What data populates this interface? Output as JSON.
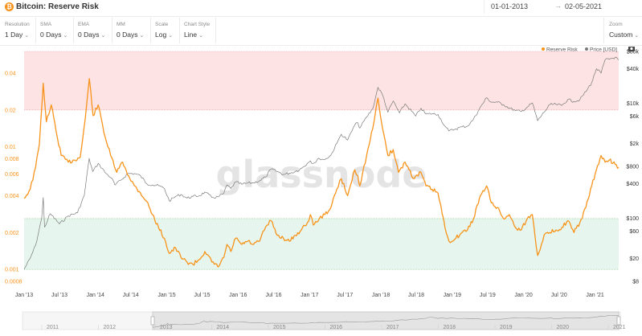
{
  "header": {
    "title": "Bitcoin: Reserve Risk",
    "date_from": "01-01-2013",
    "date_arrow": "→",
    "date_to": "02-05-2021"
  },
  "controls": [
    {
      "label": "Resolution",
      "value": "1 Day"
    },
    {
      "label": "SMA",
      "value": "0 Days"
    },
    {
      "label": "EMA",
      "value": "0 Days"
    },
    {
      "label": "MM",
      "value": "0 Days"
    },
    {
      "label": "Scale",
      "value": "Log"
    },
    {
      "label": "Chart Style",
      "value": "Line"
    },
    {
      "label": "Zoom",
      "value": "Custom"
    }
  ],
  "watermark": "glassnode",
  "colors": {
    "reserve_risk": "#f7931a",
    "price": "#7a7a7a",
    "high_zone": "#fde3e3",
    "low_zone": "#e6f6ee"
  },
  "navigator_years": [
    "2011",
    "2012",
    "2013",
    "2014",
    "2015",
    "2016",
    "2017",
    "2018",
    "2019",
    "2020",
    "2021"
  ],
  "chart_data": {
    "type": "line",
    "x_type": "date",
    "x_range": [
      "2013-01-01",
      "2021-05-02"
    ],
    "x_ticks": [
      "Jan '13",
      "Jul '13",
      "Jan '14",
      "Jul '14",
      "Jan '15",
      "Jul '15",
      "Jan '16",
      "Jul '16",
      "Jan '17",
      "Jul '17",
      "Jan '18",
      "Jul '18",
      "Jan '19",
      "Jul '19",
      "Jan '20",
      "Jul '20",
      "Jan '21"
    ],
    "y_left": {
      "scale": "log",
      "ticks": [
        "0.04",
        "0.02",
        "0.01",
        "0.008",
        "0.006",
        "0.004",
        "0.002",
        "0.001",
        "0.0008"
      ],
      "range": [
        0.0008,
        0.06
      ]
    },
    "y_right": {
      "scale": "log",
      "ticks": [
        "$80k",
        "$40k",
        "$10k",
        "$6k",
        "$2k",
        "$800",
        "$400",
        "$100",
        "$60",
        "$20",
        "$8"
      ],
      "range": [
        8,
        80000
      ]
    },
    "zones": [
      {
        "name": "high",
        "from": 0.02,
        "to": 0.06
      },
      {
        "name": "low",
        "from": 0.001,
        "to": 0.0026
      }
    ],
    "legend_position": "top-right",
    "series": [
      {
        "name": "Reserve Risk",
        "axis": "left",
        "x": [
          "2013-01-01",
          "2013-02-01",
          "2013-03-01",
          "2013-03-20",
          "2013-04-09",
          "2013-04-25",
          "2013-05-20",
          "2013-06-20",
          "2013-07-10",
          "2013-08-15",
          "2013-09-15",
          "2013-10-15",
          "2013-11-10",
          "2013-12-01",
          "2013-12-20",
          "2014-01-15",
          "2014-02-20",
          "2014-03-20",
          "2014-04-20",
          "2014-05-20",
          "2014-06-20",
          "2014-07-20",
          "2014-08-20",
          "2014-09-20",
          "2014-10-20",
          "2014-11-20",
          "2014-12-20",
          "2015-01-14",
          "2015-02-15",
          "2015-03-15",
          "2015-04-15",
          "2015-05-15",
          "2015-06-15",
          "2015-07-15",
          "2015-08-20",
          "2015-09-20",
          "2015-10-20",
          "2015-11-05",
          "2015-11-25",
          "2015-12-20",
          "2016-01-20",
          "2016-02-20",
          "2016-03-20",
          "2016-04-20",
          "2016-05-20",
          "2016-06-18",
          "2016-07-20",
          "2016-08-20",
          "2016-09-20",
          "2016-10-20",
          "2016-11-20",
          "2016-12-20",
          "2017-01-05",
          "2017-01-20",
          "2017-02-20",
          "2017-03-20",
          "2017-04-20",
          "2017-05-20",
          "2017-06-12",
          "2017-07-15",
          "2017-08-20",
          "2017-09-05",
          "2017-09-15",
          "2017-10-20",
          "2017-11-20",
          "2017-12-17",
          "2018-01-10",
          "2018-02-06",
          "2018-03-05",
          "2018-04-01",
          "2018-05-05",
          "2018-06-20",
          "2018-07-25",
          "2018-08-20",
          "2018-09-20",
          "2018-10-20",
          "2018-11-25",
          "2018-12-15",
          "2019-01-20",
          "2019-02-20",
          "2019-03-20",
          "2019-04-20",
          "2019-05-20",
          "2019-06-26",
          "2019-07-20",
          "2019-08-20",
          "2019-09-20",
          "2019-10-20",
          "2019-11-20",
          "2019-12-20",
          "2020-01-20",
          "2020-02-15",
          "2020-03-13",
          "2020-04-15",
          "2020-05-15",
          "2020-06-15",
          "2020-07-15",
          "2020-08-15",
          "2020-09-15",
          "2020-10-15",
          "2020-11-15",
          "2020-12-15",
          "2021-01-08",
          "2021-02-01",
          "2021-02-21",
          "2021-03-15",
          "2021-04-14",
          "2021-05-02"
        ],
        "y": [
          0.0038,
          0.0045,
          0.0068,
          0.0105,
          0.033,
          0.016,
          0.022,
          0.012,
          0.0085,
          0.0075,
          0.0078,
          0.0082,
          0.017,
          0.036,
          0.018,
          0.022,
          0.012,
          0.0085,
          0.0062,
          0.0075,
          0.0058,
          0.0048,
          0.0042,
          0.0036,
          0.0028,
          0.0022,
          0.0018,
          0.00135,
          0.0015,
          0.00125,
          0.00115,
          0.0011,
          0.0012,
          0.0014,
          0.00115,
          0.00105,
          0.00125,
          0.0016,
          0.0014,
          0.0018,
          0.0016,
          0.0017,
          0.0016,
          0.0017,
          0.0022,
          0.0025,
          0.0019,
          0.0018,
          0.0017,
          0.0019,
          0.0021,
          0.0024,
          0.0028,
          0.0023,
          0.0026,
          0.0028,
          0.0032,
          0.0045,
          0.0055,
          0.004,
          0.0065,
          0.0058,
          0.0048,
          0.0085,
          0.014,
          0.025,
          0.014,
          0.0085,
          0.0095,
          0.0062,
          0.0075,
          0.0055,
          0.0062,
          0.0048,
          0.0045,
          0.0042,
          0.0022,
          0.0017,
          0.0018,
          0.002,
          0.0021,
          0.0026,
          0.0038,
          0.0048,
          0.0035,
          0.0032,
          0.0026,
          0.0028,
          0.0022,
          0.0021,
          0.0026,
          0.0028,
          0.0013,
          0.0019,
          0.002,
          0.0021,
          0.0022,
          0.0025,
          0.002,
          0.0024,
          0.0032,
          0.0048,
          0.0065,
          0.0085,
          0.0075,
          0.0078,
          0.0072,
          0.0068
        ]
      },
      {
        "name": "Price [USD]",
        "axis": "right",
        "x": [
          "2013-01-01",
          "2013-02-01",
          "2013-03-01",
          "2013-04-01",
          "2013-04-09",
          "2013-04-16",
          "2013-05-15",
          "2013-07-01",
          "2013-08-15",
          "2013-10-01",
          "2013-11-05",
          "2013-11-30",
          "2013-12-18",
          "2014-01-15",
          "2014-02-25",
          "2014-03-25",
          "2014-04-11",
          "2014-05-15",
          "2014-06-15",
          "2014-07-20",
          "2014-08-20",
          "2014-09-20",
          "2014-10-20",
          "2014-11-20",
          "2014-12-20",
          "2015-01-14",
          "2015-02-15",
          "2015-03-15",
          "2015-04-15",
          "2015-05-15",
          "2015-06-15",
          "2015-07-15",
          "2015-08-20",
          "2015-09-20",
          "2015-10-20",
          "2015-11-05",
          "2015-11-25",
          "2015-12-20",
          "2016-01-20",
          "2016-02-20",
          "2016-03-20",
          "2016-04-20",
          "2016-05-20",
          "2016-06-18",
          "2016-07-20",
          "2016-08-20",
          "2016-09-20",
          "2016-10-20",
          "2016-11-20",
          "2016-12-20",
          "2017-01-05",
          "2017-01-20",
          "2017-02-20",
          "2017-03-20",
          "2017-04-20",
          "2017-05-20",
          "2017-06-12",
          "2017-07-15",
          "2017-08-20",
          "2017-09-05",
          "2017-09-15",
          "2017-10-20",
          "2017-11-20",
          "2017-12-17",
          "2018-01-10",
          "2018-02-06",
          "2018-03-05",
          "2018-04-06",
          "2018-05-05",
          "2018-06-28",
          "2018-07-25",
          "2018-08-20",
          "2018-09-20",
          "2018-10-20",
          "2018-11-25",
          "2018-12-15",
          "2019-01-20",
          "2019-02-20",
          "2019-03-20",
          "2019-04-20",
          "2019-05-20",
          "2019-06-26",
          "2019-07-20",
          "2019-08-20",
          "2019-09-20",
          "2019-10-20",
          "2019-11-20",
          "2019-12-20",
          "2020-01-20",
          "2020-02-15",
          "2020-03-13",
          "2020-04-15",
          "2020-05-15",
          "2020-06-15",
          "2020-07-15",
          "2020-08-15",
          "2020-09-15",
          "2020-10-15",
          "2020-11-15",
          "2020-12-15",
          "2021-01-08",
          "2021-02-01",
          "2021-02-21",
          "2021-03-15",
          "2021-04-14",
          "2021-05-02"
        ],
        "y": [
          13,
          20,
          34,
          100,
          230,
          70,
          120,
          80,
          110,
          125,
          250,
          1100,
          650,
          900,
          600,
          500,
          380,
          470,
          600,
          600,
          550,
          400,
          380,
          370,
          330,
          200,
          240,
          260,
          225,
          240,
          245,
          285,
          230,
          235,
          270,
          380,
          330,
          430,
          390,
          410,
          415,
          450,
          520,
          720,
          650,
          580,
          610,
          650,
          740,
          900,
          1000,
          900,
          1100,
          1050,
          1250,
          2000,
          2900,
          2300,
          4200,
          4600,
          3700,
          5800,
          8000,
          19000,
          14000,
          7000,
          11000,
          6800,
          9800,
          6000,
          8200,
          6500,
          6600,
          6400,
          4000,
          3300,
          3600,
          3900,
          4000,
          5300,
          8000,
          12500,
          10500,
          10500,
          9500,
          8300,
          7500,
          7200,
          8600,
          10200,
          5000,
          7000,
          9500,
          9600,
          9200,
          11700,
          10800,
          11500,
          16000,
          23000,
          40000,
          33500,
          57000,
          59000,
          63000,
          57000
        ]
      }
    ]
  }
}
